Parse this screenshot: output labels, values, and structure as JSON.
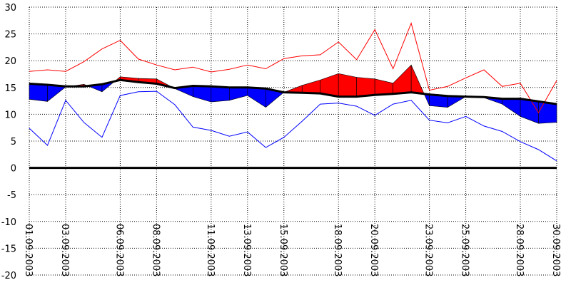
{
  "chart_data": {
    "type": "area",
    "ylim": [
      -20,
      30
    ],
    "yticks": [
      -20,
      -15,
      -10,
      -5,
      0,
      5,
      10,
      15,
      20,
      25,
      30
    ],
    "xticks": [
      "01.09.2003",
      "03.09.2003",
      "06.09.2003",
      "08.09.2003",
      "11.09.2003",
      "13.09.2003",
      "15.09.2003",
      "18.09.2003",
      "20.09.2003",
      "23.09.2003",
      "25.09.2003",
      "28.09.2003",
      "30.09.2003"
    ],
    "grid": true,
    "x": [
      "01.09.2003",
      "02.09.2003",
      "03.09.2003",
      "04.09.2003",
      "05.09.2003",
      "06.09.2003",
      "07.09.2003",
      "08.09.2003",
      "09.09.2003",
      "10.09.2003",
      "11.09.2003",
      "12.09.2003",
      "13.09.2003",
      "14.09.2003",
      "15.09.2003",
      "16.09.2003",
      "17.09.2003",
      "18.09.2003",
      "19.09.2003",
      "20.09.2003",
      "21.09.2003",
      "22.09.2003",
      "23.09.2003",
      "24.09.2003",
      "25.09.2003",
      "26.09.2003",
      "27.09.2003",
      "28.09.2003",
      "29.09.2003",
      "30.09.2003"
    ],
    "series": [
      {
        "role": "max",
        "color": "#ff0000",
        "values": [
          18.0,
          18.3,
          18.0,
          19.8,
          22.2,
          23.8,
          20.3,
          19.2,
          18.3,
          18.8,
          17.9,
          18.4,
          19.2,
          18.5,
          20.4,
          20.9,
          21.1,
          23.5,
          20.2,
          25.8,
          18.5,
          27.0,
          14.5,
          15.2,
          16.8,
          18.3,
          15.2,
          15.8,
          10.3,
          16.3
        ]
      },
      {
        "role": "mean",
        "color": "#0000ff",
        "values": [
          12.8,
          12.4,
          15.1,
          15.6,
          14.2,
          17.0,
          16.7,
          16.6,
          14.8,
          13.3,
          12.3,
          12.6,
          13.5,
          11.3,
          14.1,
          15.4,
          16.4,
          17.6,
          16.9,
          16.6,
          15.8,
          19.2,
          11.6,
          11.3,
          13.3,
          13.1,
          11.9,
          9.6,
          8.3,
          8.5
        ]
      },
      {
        "role": "normal",
        "color": "#000000",
        "values": [
          15.7,
          15.5,
          15.2,
          15.2,
          15.6,
          16.4,
          16.0,
          15.7,
          14.9,
          15.3,
          15.2,
          15.0,
          15.0,
          14.8,
          14.1,
          14.0,
          13.9,
          13.3,
          13.3,
          13.6,
          13.8,
          14.1,
          13.7,
          13.4,
          13.3,
          13.2,
          12.9,
          12.9,
          12.4,
          11.9
        ]
      },
      {
        "role": "min",
        "color": "#0000ff",
        "values": [
          7.4,
          4.2,
          12.6,
          8.5,
          5.7,
          13.5,
          14.2,
          14.3,
          11.8,
          7.6,
          7.0,
          5.9,
          6.7,
          3.8,
          5.7,
          8.7,
          11.9,
          12.1,
          11.5,
          9.8,
          11.9,
          12.6,
          8.9,
          8.4,
          9.6,
          7.8,
          6.8,
          4.9,
          3.4,
          1.3
        ]
      }
    ],
    "colors": {
      "above": "#ff0000",
      "below": "#0000ff",
      "zero": "#000000"
    }
  }
}
